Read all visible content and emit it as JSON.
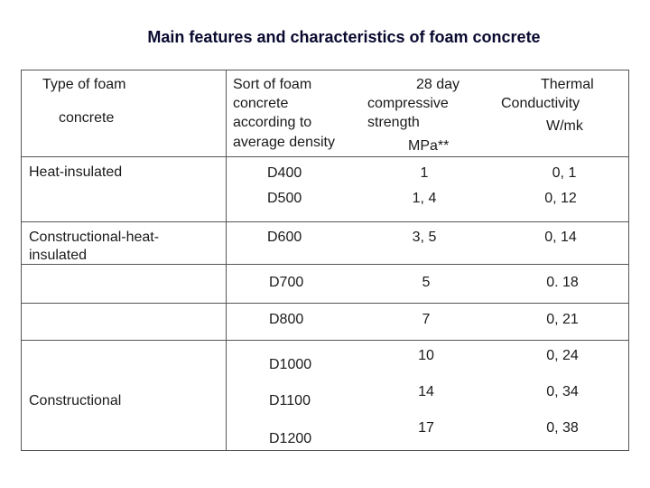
{
  "title": "Main features and characteristics of foam concrete",
  "headers": {
    "type_line1": "Type of foam",
    "type_line2": "concrete",
    "sort_line1": "Sort of foam",
    "sort_line2": "concrete",
    "sort_line3": "according to",
    "sort_line4": "average density",
    "strength_line1": "28 day",
    "strength_line2": "compressive",
    "strength_line3": "strength",
    "strength_line4": "MPa**",
    "thermal_line1": "Thermal",
    "thermal_line2": "Conductivity",
    "thermal_line3": "W/mk"
  },
  "types": {
    "heat": "Heat-insulated",
    "construct_heat_line1": "Constructional-heat-",
    "construct_heat_line2": "insulated",
    "construct": "Constructional"
  },
  "rows": [
    {
      "grade": "D400",
      "strength": "1",
      "thermal": "0, 1"
    },
    {
      "grade": "D500",
      "strength": "1, 4",
      "thermal": "0, 12"
    },
    {
      "grade": "D600",
      "strength": "3, 5",
      "thermal": "0, 14"
    },
    {
      "grade": "D700",
      "strength": "5",
      "thermal": "0. 18"
    },
    {
      "grade": "D800",
      "strength": "7",
      "thermal": "0, 21"
    },
    {
      "grade": "D1000",
      "strength": "10",
      "thermal": "0, 24"
    },
    {
      "grade": "D1100",
      "strength": "14",
      "thermal": "0, 34"
    },
    {
      "grade": "D1200",
      "strength": "17",
      "thermal": "0, 38"
    }
  ]
}
